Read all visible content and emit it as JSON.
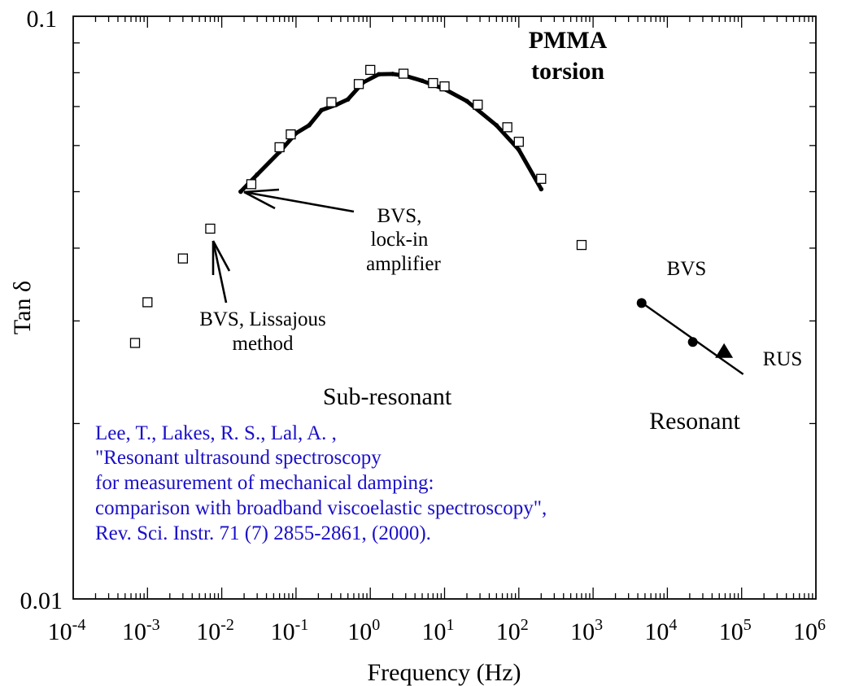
{
  "chart_data": {
    "type": "scatter",
    "title": "PMMA torsion",
    "title_lines": [
      "PMMA",
      "torsion"
    ],
    "xlabel": "Frequency (Hz)",
    "ylabel": "Tan δ",
    "xscale": "log",
    "yscale": "log",
    "xlim": [
      0.0001,
      1000000
    ],
    "ylim": [
      0.01,
      0.1
    ],
    "x_tick_labels": [
      {
        "base": "10",
        "exp": "-4"
      },
      {
        "base": "10",
        "exp": "-3"
      },
      {
        "base": "10",
        "exp": "-2"
      },
      {
        "base": "10",
        "exp": "-1"
      },
      {
        "base": "10",
        "exp": "0"
      },
      {
        "base": "10",
        "exp": "1"
      },
      {
        "base": "10",
        "exp": "2"
      },
      {
        "base": "10",
        "exp": "3"
      },
      {
        "base": "10",
        "exp": "4"
      },
      {
        "base": "10",
        "exp": "5"
      },
      {
        "base": "10",
        "exp": "6"
      }
    ],
    "y_tick_labels": [
      "0.1",
      "0.01"
    ],
    "series": [
      {
        "name": "BVS, Lissajous method",
        "marker": "open-square",
        "points": [
          {
            "x": 0.00068,
            "y": 0.0275
          },
          {
            "x": 0.001,
            "y": 0.0323
          },
          {
            "x": 0.003,
            "y": 0.0384
          },
          {
            "x": 0.007,
            "y": 0.0432
          },
          {
            "x": 0.025,
            "y": 0.0515
          },
          {
            "x": 0.06,
            "y": 0.0596
          },
          {
            "x": 0.085,
            "y": 0.0627
          },
          {
            "x": 0.3,
            "y": 0.0712
          },
          {
            "x": 0.7,
            "y": 0.0765
          },
          {
            "x": 1.0,
            "y": 0.0809
          },
          {
            "x": 2.8,
            "y": 0.0797
          },
          {
            "x": 7.0,
            "y": 0.0768
          },
          {
            "x": 10.0,
            "y": 0.0758
          },
          {
            "x": 28.0,
            "y": 0.0705
          },
          {
            "x": 70.0,
            "y": 0.0645
          },
          {
            "x": 100.0,
            "y": 0.0609
          },
          {
            "x": 200.0,
            "y": 0.0526
          },
          {
            "x": 700.0,
            "y": 0.0405
          }
        ]
      },
      {
        "name": "BVS, lock-in amplifier",
        "marker": "dense-curve",
        "points": [
          {
            "x": 0.018,
            "y": 0.05
          },
          {
            "x": 0.03,
            "y": 0.0535
          },
          {
            "x": 0.06,
            "y": 0.0585
          },
          {
            "x": 0.1,
            "y": 0.063
          },
          {
            "x": 0.15,
            "y": 0.065
          },
          {
            "x": 0.22,
            "y": 0.069
          },
          {
            "x": 0.35,
            "y": 0.0705
          },
          {
            "x": 0.5,
            "y": 0.072
          },
          {
            "x": 0.8,
            "y": 0.077
          },
          {
            "x": 1.3,
            "y": 0.0795
          },
          {
            "x": 2.0,
            "y": 0.0796
          },
          {
            "x": 3.0,
            "y": 0.079
          },
          {
            "x": 5.0,
            "y": 0.0775
          },
          {
            "x": 10.0,
            "y": 0.075
          },
          {
            "x": 20.0,
            "y": 0.0715
          },
          {
            "x": 50.0,
            "y": 0.065
          },
          {
            "x": 100.0,
            "y": 0.059
          },
          {
            "x": 200.0,
            "y": 0.0505
          }
        ]
      },
      {
        "name": "BVS",
        "marker": "filled-circle",
        "points": [
          {
            "x": 4500,
            "y": 0.0322
          },
          {
            "x": 22000,
            "y": 0.0276
          }
        ]
      },
      {
        "name": "RUS",
        "marker": "filled-triangle",
        "points": [
          {
            "x": 58000,
            "y": 0.0266
          }
        ]
      }
    ],
    "fit_line": {
      "points": [
        {
          "x": 4000,
          "y": 0.0326
        },
        {
          "x": 105000,
          "y": 0.0243
        }
      ]
    },
    "annotations": {
      "lockin": [
        "BVS,",
        "lock-in",
        "amplifier"
      ],
      "lissajous": [
        "BVS, Lissajous",
        "method"
      ],
      "bvs_resonant": "BVS",
      "rus": "RUS",
      "sub_resonant": "Sub-resonant",
      "resonant": "Resonant",
      "reference": [
        "Lee, T., Lakes, R. S., Lal, A. ,",
        "\"Resonant ultrasound spectroscopy",
        "for measurement of mechanical damping:",
        "comparison with broadband viscoelastic spectroscopy\",",
        "Rev. Sci. Instr. 71 (7) 2855-2861,  (2000)."
      ]
    },
    "colors": {
      "axes": "#000000",
      "reference_text": "#1a0fc8"
    }
  }
}
